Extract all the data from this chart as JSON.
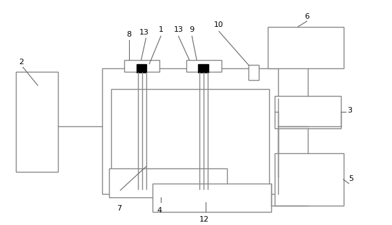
{
  "bg_color": "#ffffff",
  "lc": "#888888",
  "black": "#000000",
  "lw": 1.0,
  "fig_width": 5.68,
  "fig_height": 3.26,
  "dpi": 100
}
